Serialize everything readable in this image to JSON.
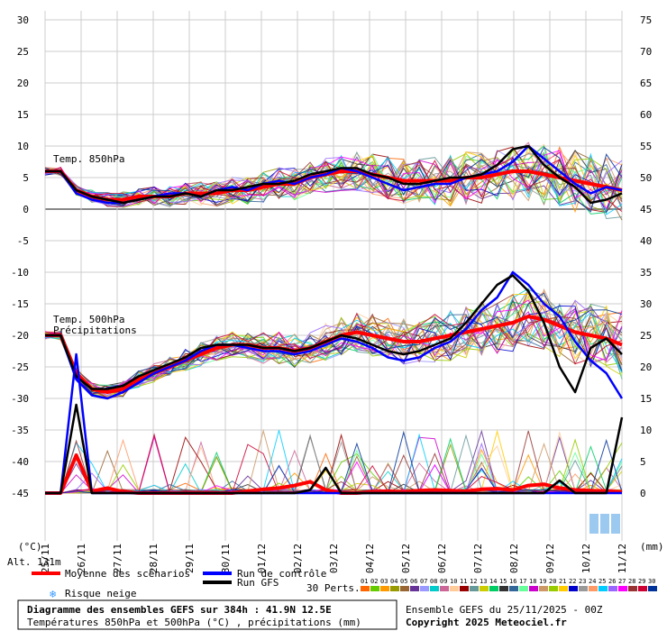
{
  "chart_data": {
    "type": "line",
    "title": "Diagramme des ensembles GEFS sur 384h : 41.9N 12.5E",
    "subtitle": "Températures 850hPa et 500hPa (°C) , précipitations (mm)",
    "left_axis_unit": "(°C)",
    "right_axis_unit": "(mm)",
    "left_ticks": [
      30,
      25,
      20,
      15,
      10,
      5,
      0,
      -5,
      -10,
      -15,
      -20,
      -25,
      -30,
      -35,
      -40,
      -45
    ],
    "right_ticks": [
      75,
      70,
      65,
      60,
      55,
      50,
      45,
      40,
      35,
      30,
      25,
      20,
      15,
      10,
      5,
      0
    ],
    "ylim_left": [
      -45,
      30
    ],
    "ylim_right": [
      0,
      75
    ],
    "x_labels": [
      "25/11",
      "26/11",
      "27/11",
      "28/11",
      "29/11",
      "30/11",
      "01/12",
      "02/12",
      "03/12",
      "04/12",
      "05/12",
      "06/12",
      "07/12",
      "08/12",
      "09/12",
      "10/12",
      "11/12"
    ],
    "panel_labels": {
      "t850": "Temp. 850hPa",
      "t500": "Temp. 500hPa",
      "precip": "Précipitations"
    },
    "altitude": "Alt. 131m",
    "legend": {
      "mean": "Moyenne des scénarios",
      "control": "Run de contrôle",
      "gfs": "Run GFS",
      "snow": "Risque neige",
      "perts": "30 Perts."
    },
    "pert_ids": [
      "01",
      "02",
      "03",
      "04",
      "05",
      "06",
      "07",
      "08",
      "09",
      "10",
      "11",
      "12",
      "13",
      "14",
      "15",
      "16",
      "17",
      "18",
      "19",
      "20",
      "21",
      "22",
      "23",
      "24",
      "25",
      "26",
      "27",
      "28",
      "29",
      "30"
    ],
    "pert_colors": [
      "#ff6600",
      "#66cc00",
      "#ff9900",
      "#999900",
      "#996633",
      "#663399",
      "#9999ff",
      "#00cccc",
      "#cc6699",
      "#ffcc99",
      "#990000",
      "#669999",
      "#cccc00",
      "#00cc66",
      "#333333",
      "#336699",
      "#66ff99",
      "#cc00cc",
      "#cc9966",
      "#99cc00",
      "#ffcc00",
      "#0000cc",
      "#999999",
      "#ff9966",
      "#00ccff",
      "#9966ff",
      "#ff00ff",
      "#993333",
      "#cc0033",
      "#003399"
    ],
    "colors": {
      "mean": "#ff0000",
      "control": "#0000ff",
      "gfs": "#000000",
      "snow": "#3399ff"
    },
    "series": [
      {
        "name": "Moyenne des scénarios",
        "panel": "t850",
        "values": [
          6,
          6,
          3,
          2,
          1.5,
          1.5,
          2,
          2,
          2,
          2.5,
          2.5,
          2.5,
          3,
          3,
          3.5,
          4,
          4,
          5,
          5.5,
          6,
          6,
          5.5,
          5,
          4.5,
          4.5,
          4.5,
          4.5,
          5,
          5,
          5.5,
          6,
          6,
          5.5,
          5,
          4.5,
          4,
          3.5,
          3
        ]
      },
      {
        "name": "Run de contrôle",
        "panel": "t850",
        "values": [
          6,
          6,
          2.5,
          1.5,
          1,
          1,
          1.5,
          2,
          2.5,
          2.5,
          2,
          3,
          3.5,
          3,
          4,
          4.5,
          4,
          5,
          5.5,
          6.5,
          6,
          5,
          4,
          3,
          3.5,
          4,
          4,
          5,
          5.5,
          6,
          7.5,
          10,
          8,
          6,
          4,
          2.5,
          3.5,
          3
        ]
      },
      {
        "name": "Run GFS",
        "panel": "t850",
        "values": [
          6,
          6,
          3,
          2,
          1.5,
          1,
          1.5,
          2,
          2,
          2.5,
          2,
          3,
          3,
          3.5,
          4,
          4,
          4.5,
          5.5,
          6,
          6.5,
          6.5,
          5.5,
          5,
          4,
          4,
          4.5,
          5,
          5,
          5.5,
          7,
          9.5,
          10,
          7,
          5,
          3.5,
          1,
          1.5,
          2.5
        ]
      },
      {
        "name": "Moyenne des scénarios",
        "panel": "t500",
        "values": [
          -20,
          -20,
          -26,
          -28.5,
          -29,
          -28.5,
          -27,
          -26,
          -25,
          -24,
          -23,
          -22,
          -21.5,
          -21.5,
          -22,
          -22,
          -22.5,
          -22,
          -21,
          -20,
          -19.5,
          -20,
          -20.5,
          -21,
          -21,
          -20.5,
          -20,
          -19.5,
          -19,
          -18.5,
          -18,
          -17,
          -17.5,
          -18.5,
          -19.5,
          -20,
          -20.5,
          -21.5
        ]
      },
      {
        "name": "Run de contrôle",
        "panel": "t500",
        "values": [
          -20,
          -20,
          -27,
          -29.5,
          -30,
          -29,
          -27.5,
          -26,
          -25,
          -24,
          -22.5,
          -21.5,
          -21.5,
          -22,
          -22.5,
          -22.5,
          -23,
          -22.5,
          -21.5,
          -20.5,
          -21,
          -22,
          -23.5,
          -24,
          -23.5,
          -22,
          -21,
          -19,
          -16,
          -14,
          -10,
          -12,
          -15,
          -17,
          -21,
          -24,
          -26,
          -30
        ]
      },
      {
        "name": "Run GFS",
        "panel": "t500",
        "values": [
          -20,
          -20,
          -26.5,
          -28.5,
          -28.5,
          -28,
          -26.5,
          -25.5,
          -24.5,
          -23.5,
          -22,
          -21.5,
          -21.5,
          -21.5,
          -22,
          -22,
          -22.5,
          -22,
          -21,
          -20,
          -20.5,
          -21.5,
          -22.5,
          -23,
          -22.5,
          -21.5,
          -20.5,
          -18,
          -15,
          -12,
          -10.5,
          -13,
          -18,
          -25,
          -29,
          -22,
          -20.5,
          -23
        ]
      },
      {
        "name": "Moyenne des scénarios",
        "panel": "precip",
        "values": [
          0,
          0,
          6,
          0.3,
          0.8,
          0.2,
          0,
          0,
          0,
          0,
          0,
          0,
          0,
          0.3,
          0.6,
          0.8,
          1.2,
          1.8,
          0.5,
          0,
          0,
          0.2,
          0.3,
          0.2,
          0.4,
          0.5,
          0.4,
          0.3,
          0.6,
          0.7,
          0.5,
          1.2,
          1.4,
          0.8,
          0.5,
          0.4,
          0.3,
          0.2
        ]
      },
      {
        "name": "Run de contrôle",
        "panel": "precip",
        "values": [
          0,
          0,
          22,
          0,
          0,
          0,
          0,
          0,
          0,
          0,
          0,
          0,
          0,
          0,
          0,
          0,
          0,
          0,
          0,
          0,
          0,
          0,
          0,
          0,
          0,
          0,
          0,
          0,
          0,
          0,
          0,
          0,
          0,
          0,
          0,
          0,
          0,
          0
        ]
      },
      {
        "name": "Run GFS",
        "panel": "precip",
        "values": [
          0,
          0,
          14,
          0,
          0,
          0,
          0,
          0,
          0,
          0,
          0,
          0,
          0,
          0,
          0,
          0,
          0,
          0.5,
          4,
          0,
          0,
          0,
          0,
          0,
          0,
          0,
          0,
          0,
          0,
          0,
          0,
          0,
          0,
          2,
          0,
          0,
          0,
          12
        ]
      }
    ],
    "grid": true,
    "legend_position": "bottom"
  },
  "footer": {
    "title": "Diagramme des ensembles GEFS sur 384h : 41.9N 12.5E",
    "subtitle": "Températures 850hPa et 500hPa (°C) , précipitations (mm)",
    "run": "Ensemble GEFS du 25/11/2025 - 00Z",
    "copyright": "Copyright 2025 Meteociel.fr"
  }
}
